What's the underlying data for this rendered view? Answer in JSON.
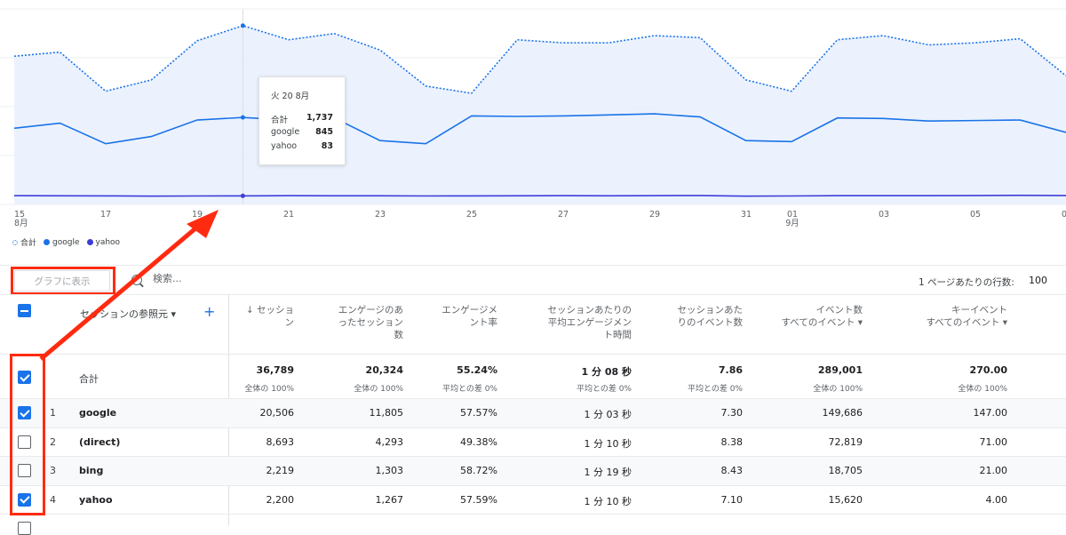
{
  "chart_data": {
    "type": "line",
    "x_tick_labels": [
      "15",
      "17",
      "19",
      "21",
      "23",
      "25",
      "27",
      "29",
      "31",
      "01",
      "03",
      "05",
      "0"
    ],
    "x_month_labels": [
      "8月",
      "9月"
    ],
    "series": [
      {
        "name": "合計",
        "style": "dotted-area",
        "color": "#1a73e8",
        "values": [
          1440,
          1480,
          1100,
          1210,
          1590,
          1737,
          1600,
          1660,
          1500,
          1150,
          1080,
          1600,
          1570,
          1570,
          1640,
          1620,
          1210,
          1100,
          1600,
          1640,
          1550,
          1570,
          1610,
          1250
        ]
      },
      {
        "name": "google",
        "style": "solid",
        "color": "#1a73e8",
        "values": [
          740,
          790,
          590,
          660,
          820,
          845,
          820,
          840,
          620,
          590,
          860,
          855,
          860,
          870,
          880,
          850,
          620,
          610,
          840,
          835,
          810,
          815,
          820,
          700
        ]
      },
      {
        "name": "yahoo",
        "style": "solid",
        "color": "#3d3dd6",
        "values": [
          85,
          84,
          83,
          80,
          82,
          83,
          85,
          84,
          84,
          82,
          83,
          84,
          85,
          84,
          85,
          86,
          80,
          82,
          85,
          85,
          85,
          86,
          88,
          86
        ]
      }
    ],
    "y_range": [
      0,
      1900
    ],
    "highlight_index": 5
  },
  "tooltip": {
    "date": "火 20 8月",
    "rows": [
      {
        "label": "合計",
        "value": "1,737"
      },
      {
        "label": "google",
        "value": "845"
      },
      {
        "label": "yahoo",
        "value": "83"
      }
    ]
  },
  "legend": [
    {
      "label": "合計",
      "color": "#1a73e8",
      "style": "dotted"
    },
    {
      "label": "google",
      "color": "#1a73e8",
      "style": "solid"
    },
    {
      "label": "yahoo",
      "color": "#3d3dd6",
      "style": "solid"
    }
  ],
  "toolbar": {
    "show_in_graph": "グラフに表示",
    "search_placeholder": "検索...",
    "rows_per_page_label": "1 ページあたりの行数:",
    "rows_per_page_value": "100"
  },
  "table": {
    "dimension_header": "セッションの参照元",
    "headers": [
      {
        "line1": "↓ セッショ",
        "line2": "ン",
        "line3": ""
      },
      {
        "line1": "エンゲージのあ",
        "line2": "ったセッション",
        "line3": "数"
      },
      {
        "line1": "エンゲージメ",
        "line2": "ント率",
        "line3": ""
      },
      {
        "line1": "セッションあたりの",
        "line2": "平均エンゲージメン",
        "line3": "ト時間"
      },
      {
        "line1": "セッションあた",
        "line2": "りのイベント数",
        "line3": ""
      },
      {
        "line1": "イベント数",
        "line2": "すべてのイベント ▾",
        "line3": ""
      },
      {
        "line1": "キーイベント",
        "line2": "すべてのイベント ▾",
        "line3": ""
      }
    ],
    "total": {
      "label": "合計",
      "values": [
        "36,789",
        "20,324",
        "55.24%",
        "1 分 08 秒",
        "7.86",
        "289,001",
        "270.00"
      ],
      "subs": [
        "全体の 100%",
        "全体の 100%",
        "平均との差 0%",
        "平均との差 0%",
        "平均との差 0%",
        "全体の 100%",
        "全体の 100%"
      ],
      "checked": true
    },
    "rows": [
      {
        "num": "1",
        "source": "google",
        "checked": true,
        "values": [
          "20,506",
          "11,805",
          "57.57%",
          "1 分 03 秒",
          "7.30",
          "149,686",
          "147.00"
        ]
      },
      {
        "num": "2",
        "source": "(direct)",
        "checked": false,
        "values": [
          "8,693",
          "4,293",
          "49.38%",
          "1 分 10 秒",
          "8.38",
          "72,819",
          "71.00"
        ]
      },
      {
        "num": "3",
        "source": "bing",
        "checked": false,
        "values": [
          "2,219",
          "1,303",
          "58.72%",
          "1 分 19 秒",
          "8.43",
          "18,705",
          "21.00"
        ]
      },
      {
        "num": "4",
        "source": "yahoo",
        "checked": true,
        "values": [
          "2,200",
          "1,267",
          "57.59%",
          "1 分 10 秒",
          "7.10",
          "15,620",
          "4.00"
        ]
      }
    ]
  }
}
